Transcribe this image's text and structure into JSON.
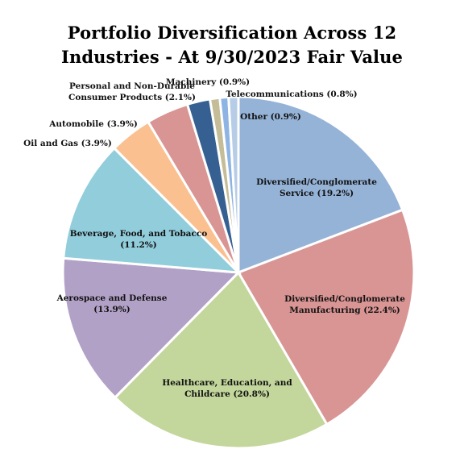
{
  "chart_data": {
    "type": "pie",
    "title_lines": [
      "Portfolio Diversification Across 12",
      "Industries - At 9/30/2023 Fair Value"
    ],
    "slices": [
      {
        "name": "Diversified/Conglomerate Service",
        "value": 19.2,
        "label_lines": [
          "Diversified/Conglomerate",
          "Service (19.2%)"
        ],
        "color": "#95b3d7",
        "label_pos": "inside"
      },
      {
        "name": "Diversified/Conglomerate Manufacturing",
        "value": 22.4,
        "label_lines": [
          "Diversified/Conglomerate",
          "Manufacturing (22.4%)"
        ],
        "color": "#d99594",
        "label_pos": "inside"
      },
      {
        "name": "Healthcare, Education, and Childcare",
        "value": 20.8,
        "label_lines": [
          "Healthcare, Education, and",
          "Childcare (20.8%)"
        ],
        "color": "#c3d69b",
        "label_pos": "inside"
      },
      {
        "name": "Aerospace and Defense",
        "value": 13.9,
        "label_lines": [
          "Aerospace and Defense",
          "(13.9%)"
        ],
        "color": "#b2a1c7",
        "label_pos": "inside"
      },
      {
        "name": "Beverage, Food, and Tobacco",
        "value": 11.2,
        "label_lines": [
          "Beverage, Food, and Tobacco",
          "(11.2%)"
        ],
        "color": "#92cddc",
        "label_pos": "inside"
      },
      {
        "name": "Oil and Gas",
        "value": 3.9,
        "label_lines": [
          "Oil and Gas (3.9%)"
        ],
        "color": "#fac090",
        "label_pos": "outside"
      },
      {
        "name": "Automobile",
        "value": 3.9,
        "label_lines": [
          "Automobile (3.9%)"
        ],
        "color": "#d99594",
        "label_pos": "outside"
      },
      {
        "name": "Personal and Non-Durable Consumer Products",
        "value": 2.1,
        "label_lines": [
          "Personal and Non-Durable",
          "Consumer Products (2.1%)"
        ],
        "color": "#366092",
        "label_pos": "outside"
      },
      {
        "name": "Machinery",
        "value": 0.9,
        "label_lines": [
          "Machinery (0.9%)"
        ],
        "color": "#c4bd97",
        "label_pos": "outside"
      },
      {
        "name": "Telecommunications",
        "value": 0.8,
        "label_lines": [
          "Telecommunications (0.8%)"
        ],
        "color": "#8eb4e3",
        "label_pos": "outside"
      },
      {
        "name": "Other",
        "value": 0.9,
        "label_lines": [
          "Other (0.9%)"
        ],
        "color": "#b7cde6",
        "label_pos": "outside"
      }
    ],
    "start_angle_deg": 0,
    "direction": "clockwise",
    "legend": "none"
  }
}
